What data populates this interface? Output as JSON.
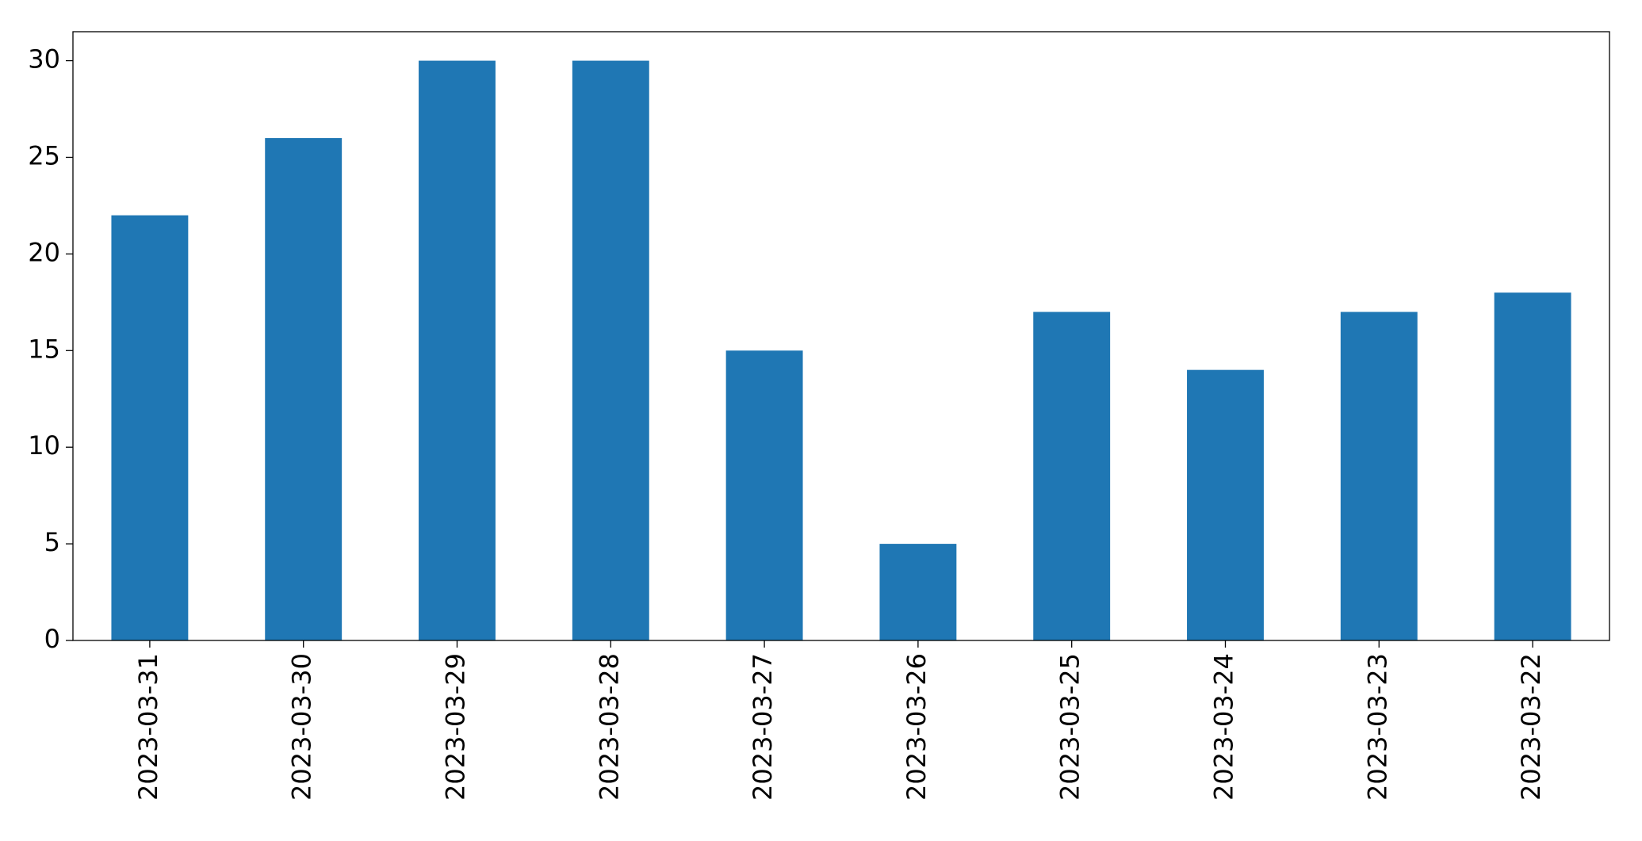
{
  "chart_data": {
    "type": "bar",
    "categories": [
      "2023-03-31",
      "2023-03-30",
      "2023-03-29",
      "2023-03-28",
      "2023-03-27",
      "2023-03-26",
      "2023-03-25",
      "2023-03-24",
      "2023-03-23",
      "2023-03-22"
    ],
    "values": [
      22,
      26,
      30,
      30,
      15,
      5,
      17,
      14,
      17,
      18
    ],
    "color": "#1f77b4",
    "ylim": [
      0,
      31.5
    ],
    "yticks": [
      0,
      5,
      10,
      15,
      20,
      25,
      30
    ],
    "grid": false
  }
}
